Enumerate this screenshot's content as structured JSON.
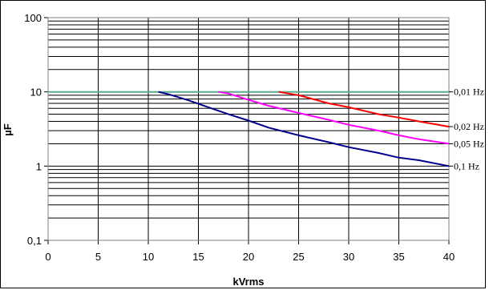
{
  "chart_data": {
    "type": "line",
    "xlabel": "kVrms",
    "ylabel": "µF",
    "xlim": [
      0,
      40
    ],
    "ylim": [
      0.1,
      100
    ],
    "yscale": "log",
    "grid": true,
    "x_ticks": [
      {
        "value": 0,
        "label": "0"
      },
      {
        "value": 5,
        "label": "5"
      },
      {
        "value": 10,
        "label": "10"
      },
      {
        "value": 15,
        "label": "15"
      },
      {
        "value": 20,
        "label": "20"
      },
      {
        "value": 25,
        "label": "25"
      },
      {
        "value": 30,
        "label": "30"
      },
      {
        "value": 35,
        "label": "35"
      },
      {
        "value": 40,
        "label": "40"
      }
    ],
    "y_ticks": [
      {
        "value": 0.1,
        "label": "0,1"
      },
      {
        "value": 1,
        "label": "1"
      },
      {
        "value": 10,
        "label": "10"
      },
      {
        "value": 100,
        "label": "100"
      }
    ],
    "series": [
      {
        "label": "0,01 Hz",
        "color": "#5aaa8c",
        "x": [
          0,
          40
        ],
        "y": [
          10,
          10
        ]
      },
      {
        "label": "0,02 Hz",
        "color": "#ff0000",
        "x": [
          23,
          25,
          28,
          30,
          33,
          35,
          37,
          40
        ],
        "y": [
          10,
          9,
          7,
          6.2,
          5,
          4.5,
          4,
          3.4
        ]
      },
      {
        "label": "0,05 Hz",
        "color": "#ff00ff",
        "x": [
          17,
          18,
          20,
          22,
          25,
          28,
          30,
          33,
          35,
          37,
          40
        ],
        "y": [
          10,
          9.5,
          7.8,
          6.5,
          5.2,
          4.2,
          3.6,
          3.0,
          2.6,
          2.3,
          2.0
        ]
      },
      {
        "label": "0,1 Hz",
        "color": "#00008b",
        "x": [
          11,
          12,
          14,
          16,
          18,
          20,
          22,
          25,
          28,
          30,
          33,
          35,
          37,
          40
        ],
        "y": [
          10,
          9.3,
          7.7,
          6.2,
          5,
          4.1,
          3.3,
          2.6,
          2.1,
          1.8,
          1.5,
          1.3,
          1.2,
          1.0
        ]
      }
    ]
  }
}
